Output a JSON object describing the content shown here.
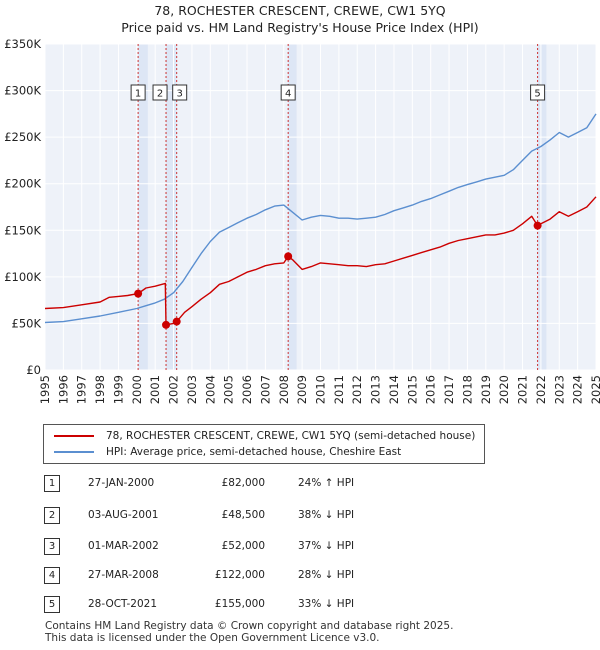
{
  "title_line1": "78, ROCHESTER CRESCENT, CREWE, CW1 5YQ",
  "title_line2": "Price paid vs. HM Land Registry's House Price Index (HPI)",
  "colors": {
    "property": "#cc0000",
    "hpi": "#5b8fd0",
    "shade": "#dde6f5",
    "marker_line": "#cc3333"
  },
  "legend": {
    "property": "78, ROCHESTER CRESCENT, CREWE, CW1 5YQ (semi-detached house)",
    "hpi": "HPI: Average price, semi-detached house, Cheshire East"
  },
  "transactions": [
    {
      "num": "1",
      "date": "27-JAN-2000",
      "price": "£82,000",
      "hpi": "24% ↑ HPI"
    },
    {
      "num": "2",
      "date": "03-AUG-2001",
      "price": "£48,500",
      "hpi": "38% ↓ HPI"
    },
    {
      "num": "3",
      "date": "01-MAR-2002",
      "price": "£52,000",
      "hpi": "37% ↓ HPI"
    },
    {
      "num": "4",
      "date": "27-MAR-2008",
      "price": "£122,000",
      "hpi": "28% ↓ HPI"
    },
    {
      "num": "5",
      "date": "28-OCT-2021",
      "price": "£155,000",
      "hpi": "33% ↓ HPI"
    }
  ],
  "footer_line1": "Contains HM Land Registry data © Crown copyright and database right 2025.",
  "footer_line2": "This data is licensed under the Open Government Licence v3.0.",
  "chart_data": {
    "type": "line",
    "title": "78, ROCHESTER CRESCENT, CREWE, CW1 5YQ",
    "subtitle": "Price paid vs. HM Land Registry's House Price Index (HPI)",
    "xlabel": "",
    "ylabel": "",
    "xlim": [
      1995,
      2025
    ],
    "ylim": [
      0,
      350000
    ],
    "y_ticks": [
      0,
      50000,
      100000,
      150000,
      200000,
      250000,
      300000,
      350000
    ],
    "y_tick_labels": [
      "£0",
      "£50K",
      "£100K",
      "£150K",
      "£200K",
      "£250K",
      "£300K",
      "£350K"
    ],
    "x_ticks": [
      1995,
      1996,
      1997,
      1998,
      1999,
      2000,
      2001,
      2002,
      2003,
      2004,
      2005,
      2006,
      2007,
      2008,
      2009,
      2010,
      2011,
      2012,
      2013,
      2014,
      2015,
      2016,
      2017,
      2018,
      2019,
      2020,
      2021,
      2022,
      2023,
      2024,
      2025
    ],
    "x_tick_labels": [
      "1995",
      "1996",
      "1997",
      "1998",
      "1999",
      "2000",
      "2001",
      "2002",
      "2003",
      "2004",
      "2005",
      "2006",
      "2007",
      "2008",
      "2009",
      "2010",
      "2011",
      "2012",
      "2013",
      "2014",
      "2015",
      "2016",
      "2017",
      "2018",
      "2019",
      "2020",
      "2021",
      "2022",
      "2023",
      "2024",
      "2025"
    ],
    "grid": true,
    "shaded_periods": [
      [
        2000.07,
        2000.6
      ],
      [
        2001.59,
        2002.17
      ],
      [
        2008.24,
        2008.7
      ],
      [
        2021.82,
        2022.3
      ]
    ],
    "series": [
      {
        "name": "78, ROCHESTER CRESCENT, CREWE, CW1 5YQ (semi-detached house)",
        "x": [
          1995.0,
          1996.0,
          1997.0,
          1998.0,
          1998.5,
          1999.0,
          1999.5,
          2000.07,
          2000.5,
          2001.0,
          2001.55,
          2001.59,
          2002.0,
          2002.17,
          2002.6,
          2003.0,
          2003.5,
          2004.0,
          2004.5,
          2005.0,
          2005.5,
          2006.0,
          2006.5,
          2007.0,
          2007.5,
          2008.0,
          2008.24,
          2008.5,
          2009.0,
          2009.5,
          2010.0,
          2010.5,
          2011.0,
          2011.5,
          2012.0,
          2012.5,
          2013.0,
          2013.5,
          2014.0,
          2014.5,
          2015.0,
          2015.5,
          2016.0,
          2016.5,
          2017.0,
          2017.5,
          2018.0,
          2018.5,
          2019.0,
          2019.5,
          2020.0,
          2020.5,
          2021.0,
          2021.5,
          2021.82,
          2022.0,
          2022.5,
          2023.0,
          2023.5,
          2024.0,
          2024.5,
          2025.0
        ],
        "values": [
          66000,
          67000,
          70000,
          73000,
          78000,
          79000,
          80000,
          82000,
          88000,
          90000,
          93000,
          48500,
          50000,
          52000,
          62000,
          68000,
          76000,
          83000,
          92000,
          95000,
          100000,
          105000,
          108000,
          112000,
          114000,
          115000,
          122000,
          118000,
          108000,
          111000,
          115000,
          114000,
          113000,
          112000,
          112000,
          111000,
          113000,
          114000,
          117000,
          120000,
          123000,
          126000,
          129000,
          132000,
          136000,
          139000,
          141000,
          143000,
          145000,
          145000,
          147000,
          150000,
          157000,
          165000,
          155000,
          157000,
          162000,
          170000,
          165000,
          170000,
          175000,
          186000
        ]
      },
      {
        "name": "HPI: Average price, semi-detached house, Cheshire East",
        "x": [
          1995.0,
          1996.0,
          1997.0,
          1998.0,
          1999.0,
          2000.0,
          2000.5,
          2001.0,
          2001.5,
          2002.0,
          2002.5,
          2003.0,
          2003.5,
          2004.0,
          2004.5,
          2005.0,
          2005.5,
          2006.0,
          2006.5,
          2007.0,
          2007.5,
          2008.0,
          2008.5,
          2009.0,
          2009.5,
          2010.0,
          2010.5,
          2011.0,
          2011.5,
          2012.0,
          2012.5,
          2013.0,
          2013.5,
          2014.0,
          2014.5,
          2015.0,
          2015.5,
          2016.0,
          2016.5,
          2017.0,
          2017.5,
          2018.0,
          2018.5,
          2019.0,
          2019.5,
          2020.0,
          2020.5,
          2021.0,
          2021.5,
          2022.0,
          2022.5,
          2023.0,
          2023.5,
          2024.0,
          2024.5,
          2025.0
        ],
        "values": [
          51000,
          52000,
          55000,
          58000,
          62000,
          66000,
          69000,
          72000,
          76000,
          83000,
          95000,
          110000,
          125000,
          138000,
          148000,
          153000,
          158000,
          163000,
          167000,
          172000,
          176000,
          177000,
          169000,
          161000,
          164000,
          166000,
          165000,
          163000,
          163000,
          162000,
          163000,
          164000,
          167000,
          171000,
          174000,
          177000,
          181000,
          184000,
          188000,
          192000,
          196000,
          199000,
          202000,
          205000,
          207000,
          209000,
          215000,
          225000,
          235000,
          240000,
          247000,
          255000,
          250000,
          255000,
          260000,
          275000
        ]
      }
    ],
    "annotations": [
      {
        "label": "1",
        "x": 2000.07,
        "y": 82000
      },
      {
        "label": "2",
        "x": 2001.59,
        "y": 48500
      },
      {
        "label": "3",
        "x": 2002.17,
        "y": 52000
      },
      {
        "label": "4",
        "x": 2008.24,
        "y": 122000
      },
      {
        "label": "5",
        "x": 2021.82,
        "y": 155000
      }
    ]
  }
}
